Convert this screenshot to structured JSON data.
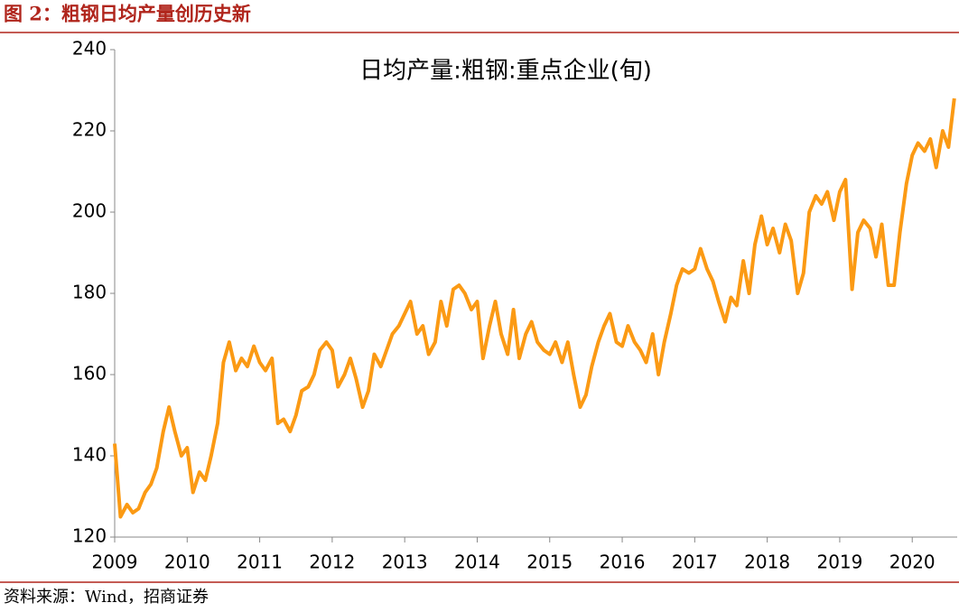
{
  "header": {
    "title": "图 2：粗钢日均产量创历史新"
  },
  "footer": {
    "source": "资料来源：Wind，招商证券"
  },
  "chart_data": {
    "type": "line",
    "x": [
      2009,
      2009.08,
      2009.17,
      2009.25,
      2009.33,
      2009.42,
      2009.5,
      2009.58,
      2009.67,
      2009.75,
      2009.83,
      2009.92,
      2010,
      2010.08,
      2010.17,
      2010.25,
      2010.33,
      2010.42,
      2010.5,
      2010.58,
      2010.67,
      2010.75,
      2010.83,
      2010.92,
      2011,
      2011.08,
      2011.17,
      2011.25,
      2011.33,
      2011.42,
      2011.5,
      2011.58,
      2011.67,
      2011.75,
      2011.83,
      2011.92,
      2012,
      2012.08,
      2012.17,
      2012.25,
      2012.33,
      2012.42,
      2012.5,
      2012.58,
      2012.67,
      2012.75,
      2012.83,
      2012.92,
      2013,
      2013.08,
      2013.17,
      2013.25,
      2013.33,
      2013.42,
      2013.5,
      2013.58,
      2013.67,
      2013.75,
      2013.83,
      2013.92,
      2014,
      2014.08,
      2014.17,
      2014.25,
      2014.33,
      2014.42,
      2014.5,
      2014.58,
      2014.67,
      2014.75,
      2014.83,
      2014.92,
      2015,
      2015.08,
      2015.17,
      2015.25,
      2015.33,
      2015.42,
      2015.5,
      2015.58,
      2015.67,
      2015.75,
      2015.83,
      2015.92,
      2016,
      2016.08,
      2016.17,
      2016.25,
      2016.33,
      2016.42,
      2016.5,
      2016.58,
      2016.67,
      2016.75,
      2016.83,
      2016.92,
      2017,
      2017.08,
      2017.17,
      2017.25,
      2017.33,
      2017.42,
      2017.5,
      2017.58,
      2017.67,
      2017.75,
      2017.83,
      2017.92,
      2018,
      2018.08,
      2018.17,
      2018.25,
      2018.33,
      2018.42,
      2018.5,
      2018.58,
      2018.67,
      2018.75,
      2018.83,
      2018.92,
      2019,
      2019.08,
      2019.17,
      2019.25,
      2019.33,
      2019.42,
      2019.5,
      2019.58,
      2019.67,
      2019.75,
      2019.83,
      2019.92,
      2020,
      2020.08,
      2020.17,
      2020.25,
      2020.33,
      2020.42,
      2020.5,
      2020.58
    ],
    "series": [
      {
        "name": "日均产量:粗钢:重点企业(旬)",
        "color": "#fb9a14",
        "values": [
          143,
          125,
          128,
          126,
          127,
          131,
          133,
          137,
          146,
          152,
          146,
          140,
          142,
          131,
          136,
          134,
          140,
          148,
          163,
          168,
          161,
          164,
          162,
          167,
          163,
          161,
          164,
          148,
          149,
          146,
          150,
          156,
          157,
          160,
          166,
          168,
          166,
          157,
          160,
          164,
          159,
          152,
          156,
          165,
          162,
          166,
          170,
          172,
          175,
          178,
          170,
          172,
          165,
          168,
          178,
          172,
          181,
          182,
          180,
          176,
          178,
          164,
          172,
          178,
          170,
          165,
          176,
          164,
          170,
          173,
          168,
          166,
          165,
          168,
          163,
          168,
          160,
          152,
          155,
          162,
          168,
          172,
          175,
          168,
          167,
          172,
          168,
          166,
          163,
          170,
          160,
          168,
          175,
          182,
          186,
          185,
          186,
          191,
          186,
          183,
          178,
          173,
          179,
          177,
          188,
          180,
          192,
          199,
          192,
          196,
          190,
          197,
          193,
          180,
          185,
          200,
          204,
          202,
          205,
          198,
          205,
          208,
          181,
          195,
          198,
          196,
          189,
          197,
          182,
          182,
          195,
          207,
          214,
          217,
          215,
          218,
          211,
          220,
          216,
          228
        ]
      }
    ],
    "xlim": [
      2009,
      2020.62
    ],
    "xticks": [
      2009,
      2010,
      2011,
      2012,
      2013,
      2014,
      2015,
      2016,
      2017,
      2018,
      2019,
      2020
    ],
    "ylim": [
      120,
      240
    ],
    "yticks": [
      120,
      140,
      160,
      180,
      200,
      220,
      240
    ]
  }
}
